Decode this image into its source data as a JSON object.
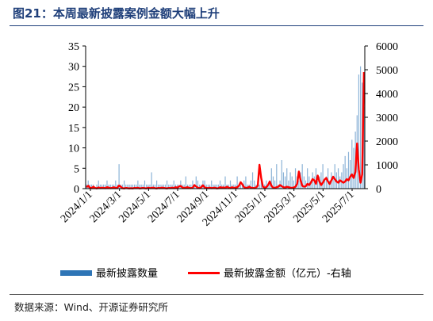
{
  "title": "图21：本周最新披露案例金额大幅上升",
  "source": "数据来源：Wind、开源证券研究所",
  "chart_data": {
    "type": "bar",
    "title": "图21：本周最新披露案例金额大幅上升",
    "grid": false,
    "legend_position": "bottom",
    "y_left": {
      "ylim": [
        0,
        35
      ],
      "ticks": [
        0,
        5,
        10,
        15,
        20,
        25,
        30,
        35
      ]
    },
    "y_right": {
      "ylim": [
        0,
        6000
      ],
      "ticks": [
        0,
        1000,
        2000,
        3000,
        4000,
        5000,
        6000
      ]
    },
    "x_tick_labels": [
      "2024/1/1",
      "2024/3/1",
      "2024/5/1",
      "2024/7/1",
      "2024/9/1",
      "2024/11/1",
      "2025/1/1",
      "2025/3/1",
      "2025/5/1",
      "2025/7/1"
    ],
    "series": [
      {
        "name": "最新披露数量",
        "type": "bar",
        "axis": "left",
        "color": "#2e75b6",
        "values": [
          1,
          2,
          1,
          1,
          1,
          0,
          1,
          2,
          1,
          1,
          1,
          1,
          2,
          1,
          1,
          1,
          1,
          2,
          1,
          6,
          1,
          1,
          2,
          1,
          1,
          1,
          1,
          1,
          1,
          1,
          2,
          1,
          1,
          1,
          2,
          1,
          1,
          1,
          4,
          1,
          1,
          2,
          1,
          1,
          1,
          1,
          1,
          2,
          1,
          1,
          1,
          2,
          1,
          1,
          1,
          2,
          1,
          1,
          3,
          1,
          1,
          1,
          2,
          1,
          3,
          2,
          1,
          1,
          2,
          2,
          1,
          1,
          1,
          2,
          1,
          1,
          1,
          1,
          2,
          1,
          1,
          3,
          1,
          1,
          2,
          1,
          1,
          1,
          3,
          1,
          1,
          1,
          2,
          3,
          1,
          1,
          2,
          4,
          2,
          1,
          2,
          1,
          3,
          1,
          1,
          2,
          1,
          1,
          5,
          3,
          2,
          6,
          1,
          2,
          7,
          4,
          3,
          5,
          2,
          4,
          3,
          2,
          5,
          3,
          2,
          4,
          6,
          3,
          2,
          5,
          3,
          2,
          4,
          3,
          5,
          2,
          3,
          4,
          6,
          2,
          3,
          5,
          2,
          4,
          3,
          6,
          4,
          5,
          3,
          4,
          6,
          8,
          5,
          9,
          7,
          12,
          10,
          14,
          18,
          28,
          30,
          26,
          20
        ]
      },
      {
        "name": "最新披露金额（亿元）-右轴",
        "type": "line",
        "axis": "right",
        "color": "#ff0000",
        "values": [
          60,
          120,
          40,
          20,
          80,
          30,
          10,
          50,
          20,
          40,
          30,
          20,
          60,
          40,
          20,
          30,
          60,
          20,
          40,
          130,
          80,
          20,
          10,
          30,
          20,
          10,
          20,
          10,
          30,
          20,
          40,
          10,
          20,
          30,
          20,
          10,
          40,
          20,
          30,
          40,
          20,
          10,
          30,
          20,
          40,
          30,
          20,
          10,
          30,
          20,
          40,
          20,
          60,
          40,
          90,
          110,
          50,
          30,
          40,
          60,
          30,
          20,
          40,
          150,
          90,
          40,
          20,
          60,
          140,
          50,
          30,
          20,
          40,
          20,
          30,
          40,
          10,
          20,
          60,
          40,
          50,
          30,
          80,
          40,
          20,
          60,
          30,
          40,
          60,
          120,
          270,
          180,
          60,
          30,
          40,
          80,
          40,
          30,
          20,
          50,
          120,
          1000,
          450,
          80,
          40,
          60,
          150,
          300,
          120,
          40,
          30,
          60,
          80,
          150,
          100,
          60,
          40,
          80,
          60,
          40,
          30,
          50,
          80,
          200,
          720,
          350,
          120,
          80,
          100,
          200,
          150,
          250,
          400,
          350,
          200,
          550,
          300,
          150,
          250,
          380,
          450,
          300,
          200,
          350,
          500,
          400,
          300,
          250,
          350,
          300,
          250,
          300,
          400,
          350,
          500,
          600,
          450,
          700,
          1900,
          800,
          250,
          600,
          4900
        ]
      }
    ]
  }
}
